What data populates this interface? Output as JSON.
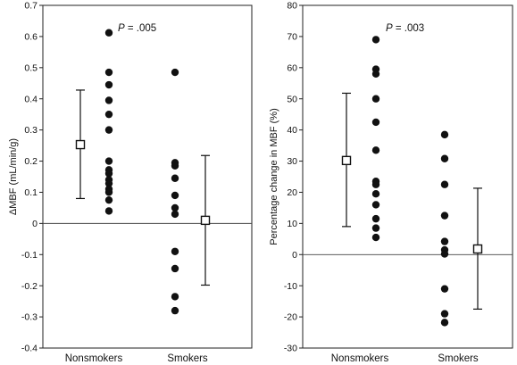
{
  "chart_data": [
    {
      "type": "scatter",
      "ylabel": "ΔMBF (mL/min/g)",
      "annotation": {
        "prefix": "P",
        "text": " = .005"
      },
      "ylim": [
        -0.4,
        0.7
      ],
      "yticks": [
        -0.4,
        -0.3,
        -0.2,
        -0.1,
        0,
        0.1,
        0.2,
        0.3,
        0.4,
        0.5,
        0.6,
        0.7
      ],
      "ytick_labels": [
        "-0.4",
        "-0.3",
        "-0.2",
        "-0.1",
        "0",
        "0.1",
        "0.2",
        "0.3",
        "0.4",
        "0.5",
        "0.6",
        "0.7"
      ],
      "reference_line": 0,
      "categories": [
        "Nonsmokers",
        "Smokers"
      ],
      "groups": [
        {
          "category": "Nonsmokers",
          "points": [
            0.612,
            0.485,
            0.445,
            0.395,
            0.35,
            0.3,
            0.2,
            0.172,
            0.16,
            0.14,
            0.128,
            0.11,
            0.1,
            0.075,
            0.04
          ],
          "mean": 0.253,
          "error_low": 0.08,
          "error_high": 0.428
        },
        {
          "category": "Smokers",
          "points": [
            0.485,
            0.195,
            0.185,
            0.145,
            0.09,
            0.05,
            0.03,
            -0.09,
            -0.145,
            -0.235,
            -0.28
          ],
          "mean": 0.01,
          "error_low": -0.198,
          "error_high": 0.218
        }
      ]
    },
    {
      "type": "scatter",
      "ylabel": "Percentage change in MBF (%)",
      "annotation": {
        "prefix": "P",
        "text": " = .003"
      },
      "ylim": [
        -30,
        80
      ],
      "yticks": [
        -30,
        -20,
        -10,
        0,
        10,
        20,
        30,
        40,
        50,
        60,
        70,
        80
      ],
      "ytick_labels": [
        "-30",
        "-20",
        "-10",
        "0",
        "10",
        "20",
        "30",
        "40",
        "50",
        "60",
        "70",
        "80"
      ],
      "reference_line": 0,
      "categories": [
        "Nonsmokers",
        "Smokers"
      ],
      "groups": [
        {
          "category": "Nonsmokers",
          "points": [
            69,
            59.5,
            58,
            50,
            42.5,
            33.5,
            23.5,
            22.5,
            19.5,
            16,
            11.5,
            8.5,
            5.5
          ],
          "mean": 30.2,
          "error_low": 9,
          "error_high": 51.8
        },
        {
          "category": "Smokers",
          "points": [
            38.5,
            30.8,
            22.5,
            12.5,
            4.2,
            1.5,
            0.2,
            -11,
            -19,
            -21.8
          ],
          "mean": 1.8,
          "error_low": -17.5,
          "error_high": 21.3
        }
      ]
    }
  ]
}
